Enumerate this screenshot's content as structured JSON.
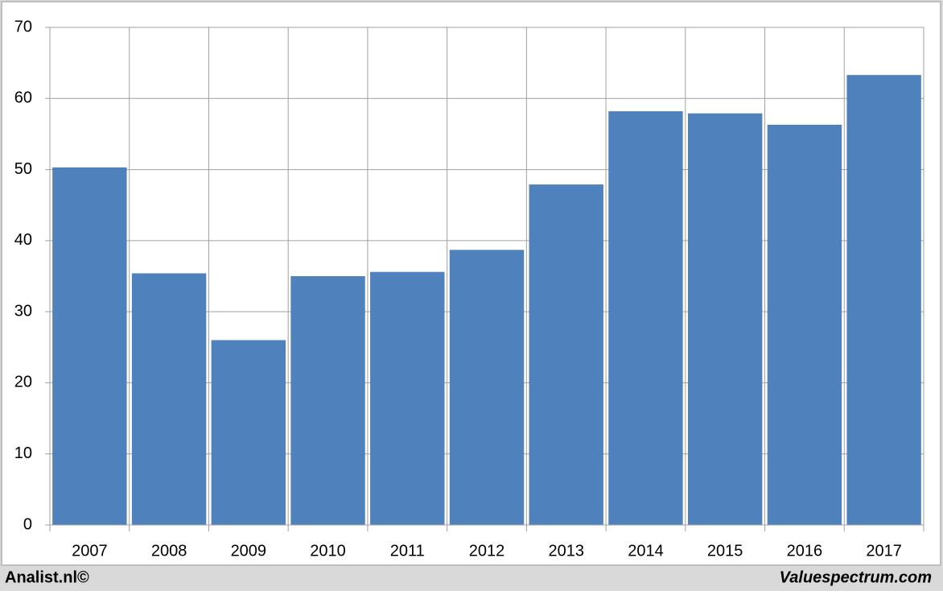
{
  "chart_data": {
    "type": "bar",
    "categories": [
      "2007",
      "2008",
      "2009",
      "2010",
      "2011",
      "2012",
      "2013",
      "2014",
      "2015",
      "2016",
      "2017"
    ],
    "values": [
      50.3,
      35.4,
      26.0,
      35.0,
      35.6,
      38.7,
      47.9,
      58.2,
      57.9,
      56.3,
      63.3
    ],
    "color": "#4f81bd",
    "ylim": [
      0,
      70
    ],
    "yticks": [
      0,
      10,
      20,
      30,
      40,
      50,
      60,
      70
    ],
    "grid": true,
    "footer_left": "Analist.nl©",
    "footer_right": "Valuespectrum.com"
  }
}
